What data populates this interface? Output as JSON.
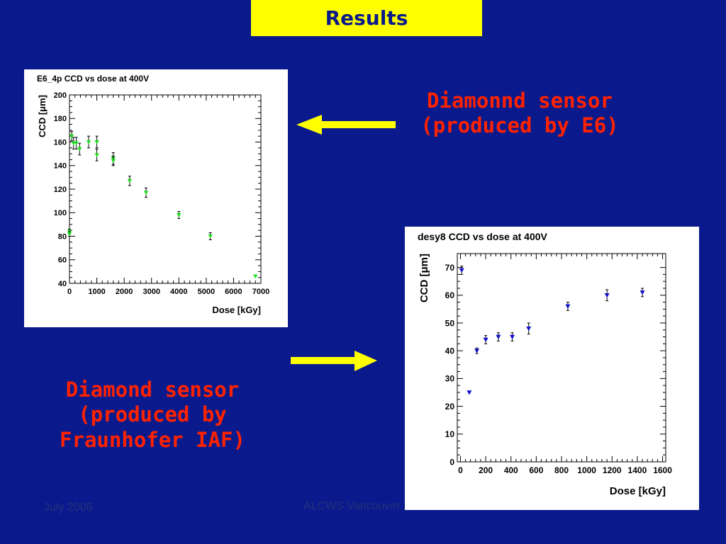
{
  "slide": {
    "title": "Results",
    "caption_e6": [
      "Diamonnd sensor",
      "(produced by E6)"
    ],
    "caption_iaf": [
      "Diamond sensor",
      "(produced by",
      "Fraunhofer IAF)"
    ],
    "footer_date": "July  2006",
    "footer_conference": "ALCWS Vancouver"
  },
  "colors": {
    "background": "#0a1a8c",
    "title_box": "#ffff00",
    "caption_text": "#ff2200",
    "arrow": "#ffff00",
    "series_e6": "#22dd22",
    "series_desy8": "#1111cc"
  },
  "chart_data": [
    {
      "type": "scatter",
      "title": "E6_4p CCD vs dose at 400V",
      "xlabel": "Dose [kGy]",
      "ylabel": "CCD [μm]",
      "xlim": [
        0,
        7000
      ],
      "ylim": [
        40,
        200
      ],
      "xticks": [
        0,
        1000,
        2000,
        3000,
        4000,
        5000,
        6000,
        7000
      ],
      "yticks": [
        40,
        60,
        80,
        100,
        120,
        140,
        160,
        180,
        200
      ],
      "marker": "triangle-down",
      "grid": false,
      "series": [
        {
          "x": [
            0,
            0,
            80,
            150,
            250,
            370,
            700,
            1000,
            1000,
            1600,
            1600,
            2200,
            2800,
            4000,
            5150,
            6800
          ],
          "y": [
            84,
            82,
            165,
            159,
            159,
            154,
            160,
            160,
            149,
            146,
            144,
            127,
            117,
            98,
            80,
            46
          ],
          "err": [
            2,
            2,
            4,
            5,
            5,
            5,
            5,
            5,
            5,
            5,
            4,
            4,
            4,
            3,
            3,
            0
          ]
        }
      ]
    },
    {
      "type": "scatter",
      "title": "desy8 CCD vs dose at 400V",
      "xlabel": "Dose [kGy]",
      "ylabel": "CCD [μm]",
      "xlim": [
        -25,
        1625
      ],
      "ylim": [
        0,
        75
      ],
      "xticks": [
        0,
        200,
        400,
        600,
        800,
        1000,
        1200,
        1400,
        1600
      ],
      "yticks": [
        0,
        10,
        20,
        30,
        40,
        50,
        60,
        70
      ],
      "marker": "triangle-down",
      "grid": false,
      "series": [
        {
          "x": [
            10,
            70,
            130,
            200,
            300,
            410,
            540,
            850,
            1160,
            1440
          ],
          "y": [
            69,
            25,
            40,
            44,
            45,
            45,
            48,
            56,
            60,
            61
          ],
          "err": [
            1.5,
            0,
            1,
            1.5,
            1.5,
            1.5,
            2,
            1.5,
            2,
            1.5
          ]
        }
      ]
    }
  ]
}
